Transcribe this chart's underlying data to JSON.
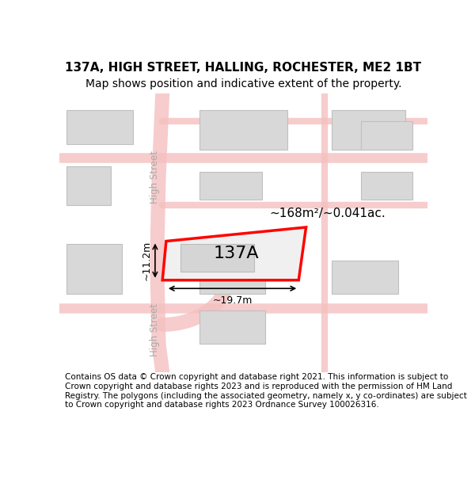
{
  "title_line1": "137A, HIGH STREET, HALLING, ROCHESTER, ME2 1BT",
  "title_line2": "Map shows position and indicative extent of the property.",
  "footer_text": "Contains OS data © Crown copyright and database right 2021. This information is subject to Crown copyright and database rights 2023 and is reproduced with the permission of HM Land Registry. The polygons (including the associated geometry, namely x, y co-ordinates) are subject to Crown copyright and database rights 2023 Ordnance Survey 100026316.",
  "bg_color": "#f0eeee",
  "map_bg": "#f5f4f4",
  "road_color": "#f7c8c8",
  "building_color": "#dcdcdc",
  "building_edge_color": "#cccccc",
  "highlight_color": "#ff0000",
  "dim_color": "#222222",
  "street_label1": "High Street",
  "street_label2": "High Street",
  "area_label": "~168m²/~0.041ac.",
  "width_label": "~19.7m",
  "height_label": "~11.2m",
  "property_label": "137A",
  "title_fontsize": 11,
  "subtitle_fontsize": 10,
  "footer_fontsize": 7.5
}
